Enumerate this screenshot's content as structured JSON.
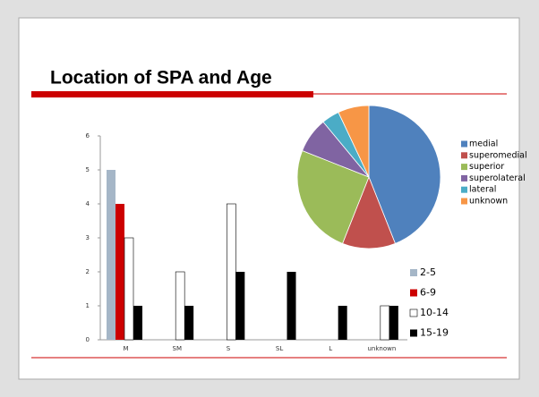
{
  "slide": {
    "title": "Location of SPA and Age"
  },
  "chart_data": [
    {
      "type": "bar",
      "categories": [
        "M",
        "SM",
        "S",
        "SL",
        "L",
        "unknown"
      ],
      "series": [
        {
          "name": "2-5",
          "color": "#a5b6c7",
          "values": [
            5,
            0,
            0,
            0,
            0,
            0
          ]
        },
        {
          "name": "6-9",
          "color": "#cc0000",
          "values": [
            4,
            0,
            0,
            0,
            0,
            0
          ]
        },
        {
          "name": "10-14",
          "color": "#ffffff",
          "values": [
            3,
            2,
            4,
            0,
            0,
            1
          ]
        },
        {
          "name": "15-19",
          "color": "#000000",
          "values": [
            1,
            1,
            2,
            2,
            1,
            1
          ]
        }
      ],
      "ylim": [
        0,
        6
      ],
      "yticks": [
        0,
        1,
        2,
        3,
        4,
        5,
        6
      ],
      "legend": "right"
    },
    {
      "type": "pie",
      "categories": [
        "medial",
        "superomedial",
        "superior",
        "superolateral",
        "lateral",
        "unknown"
      ],
      "values": [
        44,
        12,
        25,
        8,
        4,
        7
      ],
      "colors": [
        "#4f81bd",
        "#c0504d",
        "#9bbb59",
        "#8064a2",
        "#4bacc6",
        "#f79646"
      ],
      "legend": "right"
    }
  ]
}
